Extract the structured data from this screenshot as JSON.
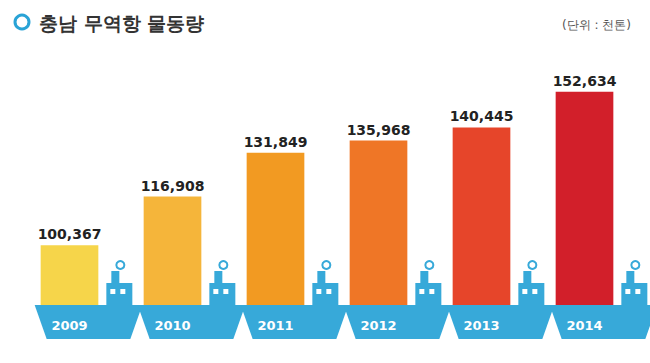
{
  "chart_data": {
    "type": "bar",
    "title": "충남 무역항 물동량",
    "subtitle": "(단위 : 천톤)",
    "categories": [
      "2009",
      "2010",
      "2011",
      "2012",
      "2013",
      "2014"
    ],
    "values": [
      100367,
      116908,
      131849,
      135968,
      140445,
      152634
    ],
    "value_labels": [
      "100,367",
      "116,908",
      "131,849",
      "135,968",
      "140,445",
      "152,634"
    ],
    "colors": [
      "#f6d54a",
      "#f5b53a",
      "#f29a22",
      "#ef7626",
      "#e6452a",
      "#d21f2a"
    ],
    "ylim": [
      80000,
      160000
    ],
    "grid": false,
    "data_labels": true,
    "tick_labels": "x"
  }
}
